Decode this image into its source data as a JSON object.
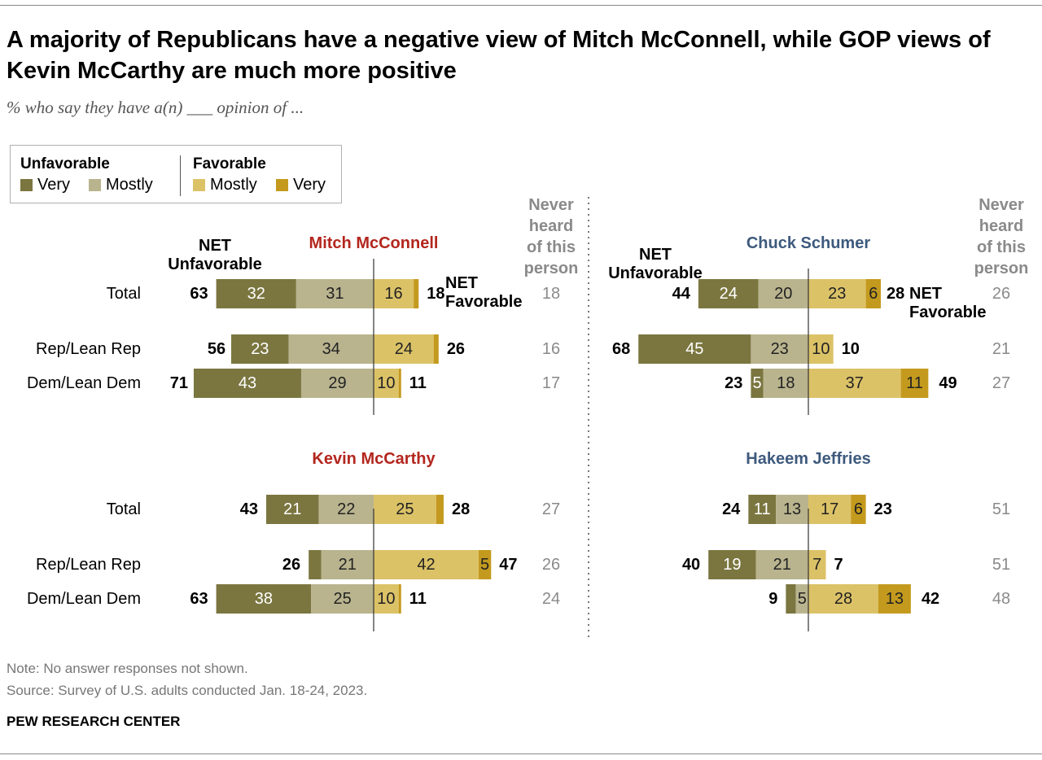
{
  "title": "A majority of Republicans have a negative view of Mitch McConnell, while GOP views of Kevin McCarthy are much more positive",
  "subtitle": "% who say they have a(n) ___ opinion of ...",
  "legend": {
    "unfavorable_label": "Unfavorable",
    "favorable_label": "Favorable",
    "items": [
      {
        "label": "Very",
        "color": "#7b7640"
      },
      {
        "label": "Mostly",
        "color": "#b9b48e"
      },
      {
        "label": "Mostly",
        "color": "#dcc267"
      },
      {
        "label": "Very",
        "color": "#c49a1e"
      }
    ]
  },
  "labels": {
    "net_unfavorable": [
      "NET",
      "Unfavorable"
    ],
    "net_favorable": [
      "NET",
      "Favorable"
    ],
    "never_heard": [
      "Never",
      "heard",
      "of this",
      "person"
    ]
  },
  "colors": {
    "very_unfav": "#7b7640",
    "mostly_unfav": "#b9b48e",
    "mostly_fav": "#dcc267",
    "very_fav": "#c49a1e",
    "republican_name": "#b3261e",
    "democrat_name": "#3e5a7d",
    "gray_text": "#8a8a8a"
  },
  "chart_data": [
    {
      "type": "bar",
      "title": "Mitch McConnell",
      "categories": [
        "Total",
        "Rep/Lean Rep",
        "Dem/Lean Dem"
      ],
      "series": [
        {
          "name": "Unfavorable Very",
          "values": [
            32,
            23,
            43
          ]
        },
        {
          "name": "Unfavorable Mostly",
          "values": [
            31,
            34,
            29
          ]
        },
        {
          "name": "Favorable Mostly",
          "values": [
            16,
            24,
            10
          ]
        },
        {
          "name": "Favorable Very",
          "values": [
            null,
            null,
            null
          ]
        }
      ],
      "net_unfavorable": [
        63,
        56,
        71
      ],
      "net_favorable": [
        18,
        26,
        11
      ],
      "never_heard": [
        18,
        16,
        17
      ]
    },
    {
      "type": "bar",
      "title": "Chuck Schumer",
      "categories": [
        "Total",
        "Rep/Lean Rep",
        "Dem/Lean Dem"
      ],
      "series": [
        {
          "name": "Unfavorable Very",
          "values": [
            24,
            45,
            5
          ]
        },
        {
          "name": "Unfavorable Mostly",
          "values": [
            20,
            23,
            18
          ]
        },
        {
          "name": "Favorable Mostly",
          "values": [
            23,
            10,
            37
          ]
        },
        {
          "name": "Favorable Very",
          "values": [
            6,
            null,
            11
          ]
        }
      ],
      "net_unfavorable": [
        44,
        68,
        23
      ],
      "net_favorable": [
        28,
        10,
        49
      ],
      "never_heard": [
        26,
        21,
        27
      ]
    },
    {
      "type": "bar",
      "title": "Kevin McCarthy",
      "categories": [
        "Total",
        "Rep/Lean Rep",
        "Dem/Lean Dem"
      ],
      "series": [
        {
          "name": "Unfavorable Very",
          "values": [
            21,
            null,
            38
          ]
        },
        {
          "name": "Unfavorable Mostly",
          "values": [
            22,
            21,
            25
          ]
        },
        {
          "name": "Favorable Mostly",
          "values": [
            25,
            42,
            10
          ]
        },
        {
          "name": "Favorable Very",
          "values": [
            null,
            5,
            null
          ]
        }
      ],
      "net_unfavorable": [
        43,
        26,
        63
      ],
      "net_favorable": [
        28,
        47,
        11
      ],
      "never_heard": [
        27,
        26,
        24
      ]
    },
    {
      "type": "bar",
      "title": "Hakeem Jeffries",
      "categories": [
        "Total",
        "Rep/Lean Rep",
        "Dem/Lean Dem"
      ],
      "series": [
        {
          "name": "Unfavorable Very",
          "values": [
            11,
            19,
            null
          ]
        },
        {
          "name": "Unfavorable Mostly",
          "values": [
            13,
            21,
            5
          ]
        },
        {
          "name": "Favorable Mostly",
          "values": [
            17,
            7,
            28
          ]
        },
        {
          "name": "Favorable Very",
          "values": [
            6,
            null,
            13
          ]
        }
      ],
      "net_unfavorable": [
        24,
        40,
        9
      ],
      "net_favorable": [
        23,
        7,
        42
      ],
      "never_heard": [
        51,
        51,
        48
      ]
    }
  ],
  "notes": {
    "note": "Note: No answer responses not shown.",
    "source": "Source: Survey of U.S. adults conducted Jan. 18-24, 2023."
  },
  "brand": "PEW RESEARCH CENTER"
}
